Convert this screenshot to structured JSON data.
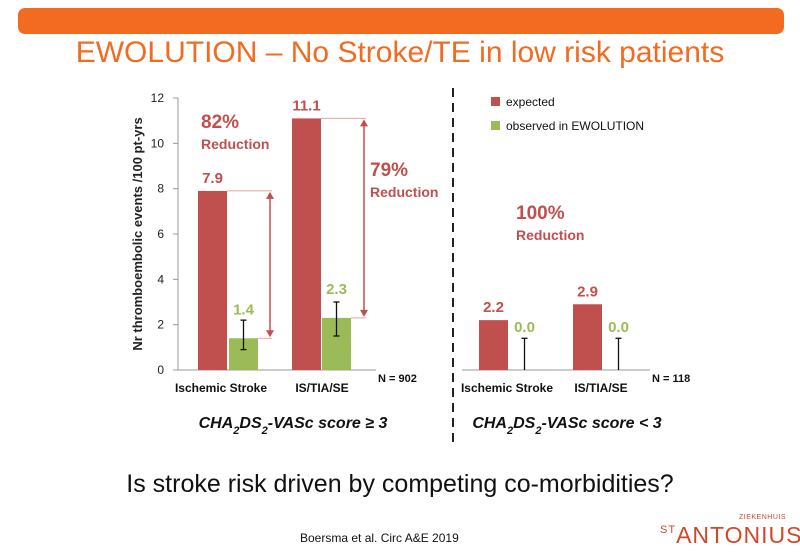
{
  "title": "EWOLUTION – No Stroke/TE in low risk patients",
  "question": "Is stroke risk driven by competing co-morbidities?",
  "citation": "Boersma et al. Circ A&E 2019",
  "logo": {
    "small": "ZIEKENHUIS",
    "prefix": "ST",
    "main": "ANTONIUS"
  },
  "colors": {
    "accent": "#F26B21",
    "expected": "#C0504D",
    "observed": "#9BBB59",
    "logo": "#D2472A"
  },
  "chart_data": {
    "type": "bar",
    "ylabel": "Nr thromboembolic events /100 pt-yrs",
    "ylim": [
      0,
      12
    ],
    "yticks": [
      0,
      2,
      4,
      6,
      8,
      10,
      12
    ],
    "legend": {
      "placement": "top-right",
      "entries": [
        "expected",
        "observed in EWOLUTION"
      ]
    },
    "categories": [
      "Ischemic Stroke",
      "IS/TIA/SE",
      "Ischemic Stroke",
      "IS/TIA/SE"
    ],
    "series": [
      {
        "name": "expected",
        "values": [
          7.9,
          11.1,
          2.2,
          2.9
        ],
        "labels": [
          "7.9",
          "11.1",
          "2.2",
          "2.9"
        ]
      },
      {
        "name": "observed in EWOLUTION",
        "values": [
          1.4,
          2.3,
          0.0,
          0.0
        ],
        "labels": [
          "1.4",
          "2.3",
          "0.0",
          "0.0"
        ]
      }
    ],
    "error_bars": [
      [
        0.9,
        2.2
      ],
      [
        1.5,
        3.0
      ],
      [
        0.0,
        1.4
      ],
      [
        0.0,
        1.4
      ]
    ],
    "group_labels": [
      "CHA2DS2-VASc score ≥ 3",
      "CHA2DS2-VASc score < 3"
    ],
    "n_labels": [
      "N = 902",
      "N = 118"
    ],
    "annotations": [
      {
        "percent": "82%",
        "word": "Reduction"
      },
      {
        "percent": "79%",
        "word": "Reduction"
      },
      {
        "percent": "100%",
        "word": "Reduction"
      }
    ]
  }
}
